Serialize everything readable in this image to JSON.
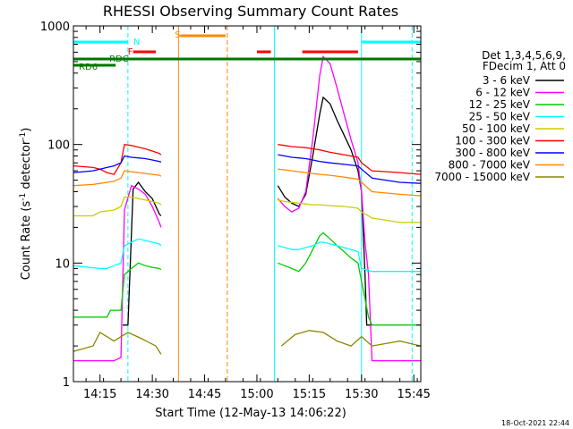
{
  "chart_data": {
    "type": "line",
    "title": "RHESSI Observing Summary Count Rates",
    "xlabel": "Start Time (12-May-13 14:06:22)",
    "ylabel_main": "Count Rate (s",
    "ylabel_sup1": "-1",
    "ylabel_mid": " detector",
    "ylabel_sup2": "-1",
    "ylabel_end": ")",
    "timestamp": "18-Oct-2021 22:44",
    "x_range_min": [
      6.37,
      106.0
    ],
    "y_scale": "log",
    "y_range": [
      1,
      1000
    ],
    "x_ticks": [
      {
        "min": 14,
        "label": "14:15"
      },
      {
        "min": 29,
        "label": "14:30"
      },
      {
        "min": 44,
        "label": "14:45"
      },
      {
        "min": 59,
        "label": "15:00"
      },
      {
        "min": 74,
        "label": "15:15"
      },
      {
        "min": 89,
        "label": "15:30"
      },
      {
        "min": 104,
        "label": "15:45"
      }
    ],
    "y_ticks": [
      {
        "value": 1,
        "label": "1"
      },
      {
        "value": 10,
        "label": "10"
      },
      {
        "value": 100,
        "label": "100"
      },
      {
        "value": 1000,
        "label": "1000"
      }
    ],
    "legend_header": [
      "Det 1,3,4,5,6,9,",
      "FDecim 1, Att 0"
    ],
    "series": [
      {
        "name": "3 - 6 keV",
        "color": "#000000",
        "points": [
          [
            20.5,
            3
          ],
          [
            22,
            3
          ],
          [
            23.5,
            42
          ],
          [
            25,
            48
          ],
          [
            27,
            40
          ],
          [
            29,
            35
          ],
          [
            31,
            26
          ],
          [
            31.5,
            25
          ],
          [
            36,
            null
          ],
          [
            64,
            null
          ],
          [
            65,
            45
          ],
          [
            67,
            36
          ],
          [
            69,
            32
          ],
          [
            71,
            30
          ],
          [
            73,
            38
          ],
          [
            75,
            80
          ],
          [
            77,
            180
          ],
          [
            78,
            250
          ],
          [
            80,
            220
          ],
          [
            82,
            160
          ],
          [
            84,
            120
          ],
          [
            86,
            90
          ],
          [
            88,
            60
          ],
          [
            89,
            40
          ],
          [
            90,
            8
          ],
          [
            90.5,
            3
          ],
          [
            92,
            3
          ]
        ]
      },
      {
        "name": "6 - 12 keV",
        "color": "#ff00ff",
        "points": [
          [
            6.4,
            1.5
          ],
          [
            18,
            1.5
          ],
          [
            20,
            1.6
          ],
          [
            21,
            28
          ],
          [
            23,
            45
          ],
          [
            25,
            42
          ],
          [
            27,
            38
          ],
          [
            29,
            30
          ],
          [
            31,
            22
          ],
          [
            31.5,
            20
          ],
          [
            36,
            null
          ],
          [
            64,
            null
          ],
          [
            65,
            35
          ],
          [
            67,
            30
          ],
          [
            69,
            27
          ],
          [
            71,
            29
          ],
          [
            73,
            40
          ],
          [
            75,
            110
          ],
          [
            77,
            380
          ],
          [
            78,
            550
          ],
          [
            80,
            480
          ],
          [
            82,
            300
          ],
          [
            84,
            180
          ],
          [
            86,
            110
          ],
          [
            88,
            70
          ],
          [
            89,
            40
          ],
          [
            90,
            15
          ],
          [
            91,
            8
          ],
          [
            92,
            1.5
          ],
          [
            106,
            1.5
          ]
        ]
      },
      {
        "name": "12 - 25 keV",
        "color": "#00cc00",
        "points": [
          [
            6.4,
            3.5
          ],
          [
            16,
            3.5
          ],
          [
            17,
            4
          ],
          [
            20,
            4
          ],
          [
            21,
            8
          ],
          [
            23,
            9
          ],
          [
            25,
            10
          ],
          [
            27,
            9.5
          ],
          [
            29,
            9.2
          ],
          [
            31,
            9
          ],
          [
            31.5,
            8.8
          ],
          [
            36,
            null
          ],
          [
            64,
            null
          ],
          [
            65,
            10
          ],
          [
            67,
            9.5
          ],
          [
            69,
            9
          ],
          [
            71,
            8.5
          ],
          [
            73,
            10
          ],
          [
            75,
            13
          ],
          [
            77,
            17
          ],
          [
            78,
            18
          ],
          [
            80,
            16
          ],
          [
            82,
            14
          ],
          [
            84,
            12.5
          ],
          [
            86,
            11
          ],
          [
            88,
            10
          ],
          [
            89,
            7
          ],
          [
            90,
            5
          ],
          [
            91,
            3.5
          ],
          [
            92,
            3
          ],
          [
            106,
            3
          ]
        ]
      },
      {
        "name": "25 - 50 keV",
        "color": "#00ffff",
        "points": [
          [
            6.4,
            9.5
          ],
          [
            14,
            9
          ],
          [
            16,
            9
          ],
          [
            18,
            9.5
          ],
          [
            20,
            10
          ],
          [
            21,
            14
          ],
          [
            23,
            15
          ],
          [
            25,
            16
          ],
          [
            27,
            15.5
          ],
          [
            29,
            15
          ],
          [
            31,
            14.5
          ],
          [
            31.5,
            14
          ],
          [
            36,
            null
          ],
          [
            64,
            null
          ],
          [
            65,
            14
          ],
          [
            67,
            13.5
          ],
          [
            69,
            13
          ],
          [
            71,
            13
          ],
          [
            73,
            13.5
          ],
          [
            75,
            14
          ],
          [
            77,
            15
          ],
          [
            78,
            15
          ],
          [
            80,
            14.5
          ],
          [
            82,
            14
          ],
          [
            84,
            13.5
          ],
          [
            86,
            13
          ],
          [
            88,
            12.5
          ],
          [
            89,
            9
          ],
          [
            92,
            8.5
          ],
          [
            100,
            8.5
          ],
          [
            106,
            8.5
          ]
        ]
      },
      {
        "name": "50 - 100 keV",
        "color": "#cccc00",
        "points": [
          [
            6.4,
            25
          ],
          [
            12,
            25
          ],
          [
            14,
            27
          ],
          [
            18,
            28
          ],
          [
            20,
            30
          ],
          [
            21,
            36
          ],
          [
            23,
            36
          ],
          [
            25,
            35
          ],
          [
            27,
            34
          ],
          [
            29,
            33
          ],
          [
            31,
            32
          ],
          [
            31.5,
            31
          ],
          [
            36,
            null
          ],
          [
            64,
            null
          ],
          [
            65,
            34
          ],
          [
            67,
            33
          ],
          [
            69,
            32.5
          ],
          [
            71,
            32
          ],
          [
            73,
            31.5
          ],
          [
            75,
            31
          ],
          [
            77,
            31
          ],
          [
            80,
            30.5
          ],
          [
            84,
            30
          ],
          [
            88,
            29
          ],
          [
            89,
            27
          ],
          [
            92,
            24
          ],
          [
            100,
            22
          ],
          [
            106,
            22
          ]
        ]
      },
      {
        "name": "100 - 300 keV",
        "color": "#ff0000",
        "points": [
          [
            6.4,
            66
          ],
          [
            12,
            64
          ],
          [
            14,
            62
          ],
          [
            16,
            58
          ],
          [
            18,
            56
          ],
          [
            20,
            70
          ],
          [
            21,
            100
          ],
          [
            23,
            98
          ],
          [
            25,
            95
          ],
          [
            27,
            92
          ],
          [
            29,
            88
          ],
          [
            31,
            84
          ],
          [
            31.5,
            82
          ],
          [
            36,
            null
          ],
          [
            64,
            null
          ],
          [
            65,
            100
          ],
          [
            67,
            98
          ],
          [
            69,
            96
          ],
          [
            71,
            95
          ],
          [
            73,
            94
          ],
          [
            75,
            92
          ],
          [
            77,
            90
          ],
          [
            80,
            86
          ],
          [
            84,
            82
          ],
          [
            88,
            78
          ],
          [
            89,
            70
          ],
          [
            92,
            60
          ],
          [
            100,
            58
          ],
          [
            106,
            56
          ]
        ]
      },
      {
        "name": "300 - 800 keV",
        "color": "#0000ff",
        "points": [
          [
            6.4,
            58
          ],
          [
            12,
            60
          ],
          [
            14,
            62
          ],
          [
            16,
            64
          ],
          [
            18,
            66
          ],
          [
            20,
            70
          ],
          [
            21,
            80
          ],
          [
            23,
            78
          ],
          [
            25,
            77
          ],
          [
            27,
            76
          ],
          [
            29,
            74
          ],
          [
            31,
            72
          ],
          [
            31.5,
            71
          ],
          [
            36,
            null
          ],
          [
            64,
            null
          ],
          [
            65,
            82
          ],
          [
            67,
            80
          ],
          [
            69,
            78
          ],
          [
            71,
            77
          ],
          [
            73,
            76
          ],
          [
            75,
            74
          ],
          [
            77,
            72
          ],
          [
            80,
            70
          ],
          [
            84,
            68
          ],
          [
            88,
            66
          ],
          [
            89,
            62
          ],
          [
            92,
            52
          ],
          [
            100,
            48
          ],
          [
            106,
            47
          ]
        ]
      },
      {
        "name": "800 - 7000 keV",
        "color": "#ff8800",
        "points": [
          [
            6.4,
            45
          ],
          [
            12,
            46
          ],
          [
            14,
            47
          ],
          [
            16,
            48
          ],
          [
            18,
            49
          ],
          [
            20,
            52
          ],
          [
            21,
            60
          ],
          [
            23,
            59
          ],
          [
            25,
            58
          ],
          [
            27,
            57
          ],
          [
            29,
            56
          ],
          [
            31,
            55
          ],
          [
            31.5,
            54
          ],
          [
            36,
            null
          ],
          [
            64,
            null
          ],
          [
            65,
            62
          ],
          [
            67,
            61
          ],
          [
            69,
            60
          ],
          [
            71,
            59
          ],
          [
            73,
            58
          ],
          [
            75,
            57
          ],
          [
            77,
            56
          ],
          [
            80,
            55
          ],
          [
            84,
            53
          ],
          [
            88,
            51
          ],
          [
            89,
            48
          ],
          [
            92,
            40
          ],
          [
            100,
            38
          ],
          [
            106,
            37
          ]
        ]
      },
      {
        "name": "7000 - 15000 keV",
        "color": "#888800",
        "points": [
          [
            6.4,
            1.8
          ],
          [
            12,
            2.0
          ],
          [
            14,
            2.6
          ],
          [
            18,
            2.2
          ],
          [
            22,
            2.6
          ],
          [
            26,
            2.3
          ],
          [
            30,
            2.0
          ],
          [
            31.5,
            1.7
          ],
          [
            36,
            null
          ],
          [
            64,
            null
          ],
          [
            66,
            2.0
          ],
          [
            70,
            2.5
          ],
          [
            74,
            2.7
          ],
          [
            78,
            2.6
          ],
          [
            82,
            2.2
          ],
          [
            86,
            2.0
          ],
          [
            89,
            2.4
          ],
          [
            92,
            2.0
          ],
          [
            100,
            2.2
          ],
          [
            106,
            2.0
          ]
        ]
      }
    ],
    "flags": [
      {
        "label": "RD6",
        "row": 2,
        "color": "#007700",
        "from": 6.4,
        "to": 18.5
      },
      {
        "label": "RDC",
        "row": 1,
        "color": "#007700",
        "from": 6.4,
        "to": 106
      },
      {
        "label": "F",
        "row": 0,
        "color": "#ff0000",
        "from": 23.5,
        "to": 30
      },
      {
        "label": "",
        "row": 0,
        "color": "#ff0000",
        "from": 59,
        "to": 63
      },
      {
        "label": "",
        "row": 0,
        "color": "#ff0000",
        "from": 72,
        "to": 88
      },
      {
        "label": "S",
        "row": -1,
        "color": "#ff8800",
        "from": 37,
        "to": 50
      },
      {
        "label": "N",
        "row": -2,
        "color": "#00ffff",
        "from": 6.4,
        "to": 22
      },
      {
        "label": "",
        "row": -2,
        "color": "#00ffff",
        "from": 89,
        "to": 106
      }
    ],
    "vertical_lines": [
      {
        "min": 22.0,
        "color": "#00ffff",
        "dashed": true
      },
      {
        "min": 36.5,
        "color": "#ff8800",
        "dashed": false
      },
      {
        "min": 50.5,
        "color": "#ff8800",
        "dashed": true
      },
      {
        "min": 64.0,
        "color": "#00ffff",
        "dashed": false
      },
      {
        "min": 89.0,
        "color": "#00ffff",
        "dashed": false
      },
      {
        "min": 103.5,
        "color": "#00ffff",
        "dashed": true
      }
    ]
  }
}
